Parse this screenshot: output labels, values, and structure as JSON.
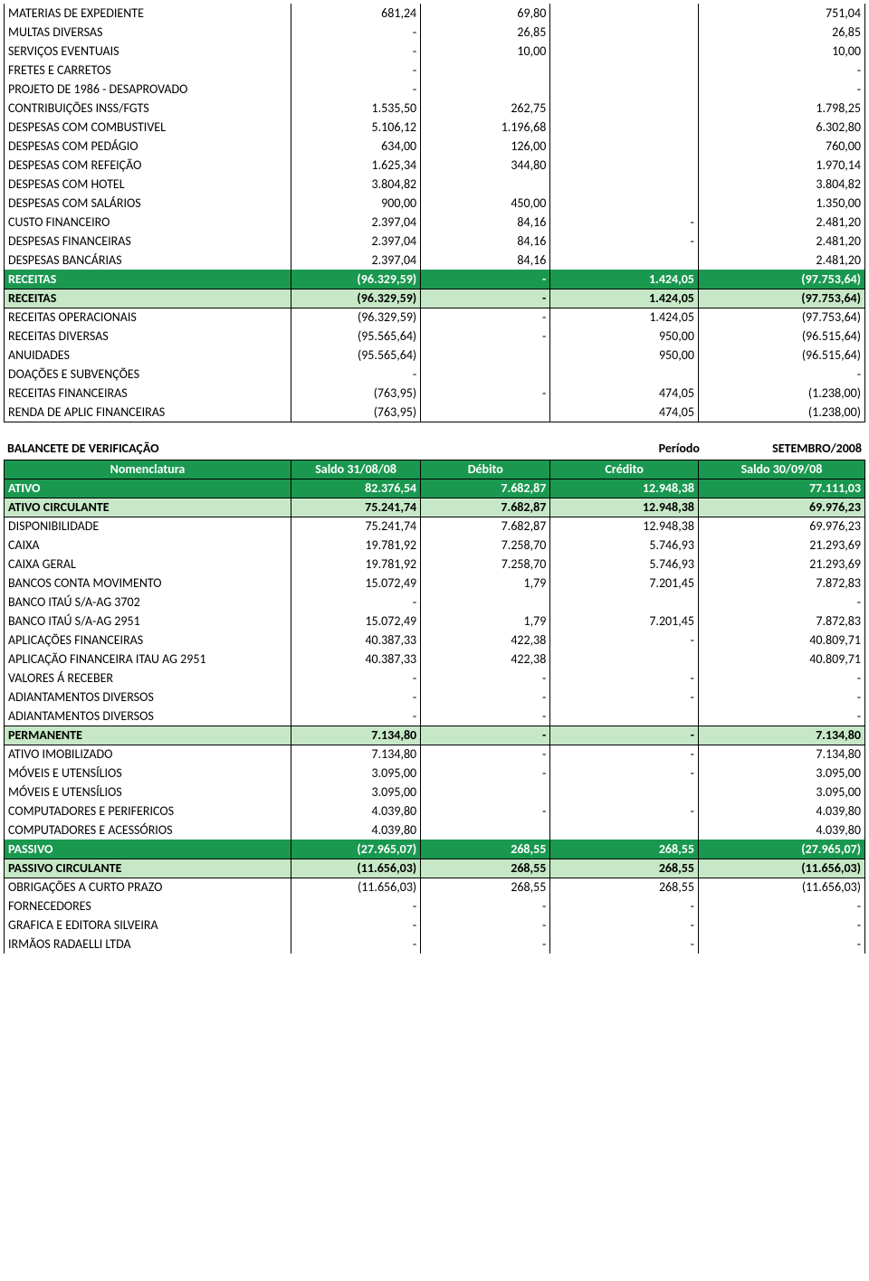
{
  "colors": {
    "dark_green": "#1a9850",
    "light_green": "#c6e8c6",
    "border": "#000000",
    "text": "#000000",
    "white": "#ffffff"
  },
  "section1": {
    "rows": [
      {
        "label": "MATERIAS DE EXPEDIENTE",
        "c1": "681,24",
        "c2": "69,80",
        "c3": "",
        "c4": "751,04",
        "style": "plain"
      },
      {
        "label": "MULTAS DIVERSAS",
        "c1": "-",
        "c2": "26,85",
        "c3": "",
        "c4": "26,85",
        "style": "plain"
      },
      {
        "label": "SERVIÇOS EVENTUAIS",
        "c1": "-",
        "c2": "10,00",
        "c3": "",
        "c4": "10,00",
        "style": "plain"
      },
      {
        "label": "FRETES E CARRETOS",
        "c1": "-",
        "c2": "",
        "c3": "",
        "c4": "-",
        "style": "plain"
      },
      {
        "label": "PROJETO DE 1986 - DESAPROVADO",
        "c1": "-",
        "c2": "",
        "c3": "",
        "c4": "-",
        "style": "plain"
      },
      {
        "label": "CONTRIBUIÇÕES INSS/FGTS",
        "c1": "1.535,50",
        "c2": "262,75",
        "c3": "",
        "c4": "1.798,25",
        "style": "plain"
      },
      {
        "label": "DESPESAS COM COMBUSTIVEL",
        "c1": "5.106,12",
        "c2": "1.196,68",
        "c3": "",
        "c4": "6.302,80",
        "style": "plain"
      },
      {
        "label": "DESPESAS COM PEDÁGIO",
        "c1": "634,00",
        "c2": "126,00",
        "c3": "",
        "c4": "760,00",
        "style": "plain"
      },
      {
        "label": "DESPESAS COM REFEIÇÃO",
        "c1": "1.625,34",
        "c2": "344,80",
        "c3": "",
        "c4": "1.970,14",
        "style": "plain"
      },
      {
        "label": "DESPESAS COM HOTEL",
        "c1": "3.804,82",
        "c2": "",
        "c3": "",
        "c4": "3.804,82",
        "style": "plain"
      },
      {
        "label": "DESPESAS COM SALÁRIOS",
        "c1": "900,00",
        "c2": "450,00",
        "c3": "",
        "c4": "1.350,00",
        "style": "plain"
      },
      {
        "label": "CUSTO FINANCEIRO",
        "c1": "2.397,04",
        "c2": "84,16",
        "c3": "-",
        "c4": "2.481,20",
        "style": "plain"
      },
      {
        "label": "DESPESAS FINANCEIRAS",
        "c1": "2.397,04",
        "c2": "84,16",
        "c3": "-",
        "c4": "2.481,20",
        "style": "plain"
      },
      {
        "label": "DESPESAS BANCÁRIAS",
        "c1": "2.397,04",
        "c2": "84,16",
        "c3": "",
        "c4": "2.481,20",
        "style": "plain"
      },
      {
        "label": "RECEITAS",
        "c1": "(96.329,59)",
        "c2": "-",
        "c3": "1.424,05",
        "c4": "(97.753,64)",
        "style": "dark"
      },
      {
        "label": "RECEITAS",
        "c1": "(96.329,59)",
        "c2": "-",
        "c3": "1.424,05",
        "c4": "(97.753,64)",
        "style": "light"
      },
      {
        "label": "RECEITAS OPERACIONAIS",
        "c1": "(96.329,59)",
        "c2": "-",
        "c3": "1.424,05",
        "c4": "(97.753,64)",
        "style": "plain"
      },
      {
        "label": "RECEITAS DIVERSAS",
        "c1": "(95.565,64)",
        "c2": "-",
        "c3": "950,00",
        "c4": "(96.515,64)",
        "style": "plain"
      },
      {
        "label": "ANUIDADES",
        "c1": "(95.565,64)",
        "c2": "",
        "c3": "950,00",
        "c4": "(96.515,64)",
        "style": "plain"
      },
      {
        "label": "DOAÇÕES E SUBVENÇÕES",
        "c1": "-",
        "c2": "",
        "c3": "",
        "c4": "-",
        "style": "plain"
      },
      {
        "label": "RECEITAS FINANCEIRAS",
        "c1": "(763,95)",
        "c2": "-",
        "c3": "474,05",
        "c4": "(1.238,00)",
        "style": "plain"
      },
      {
        "label": "RENDA DE APLIC FINANCEIRAS",
        "c1": "(763,95)",
        "c2": "",
        "c3": "474,05",
        "c4": "(1.238,00)",
        "style": "plain-bottom"
      }
    ]
  },
  "section2": {
    "title_left": "BALANCETE DE VERIFICAÇÃO",
    "title_period_label": "Período",
    "title_period_value": "SETEMBRO/2008",
    "headers": {
      "c0": "Nomenclatura",
      "c1": "Saldo 31/08/08",
      "c2": "Débito",
      "c3": "Crédito",
      "c4": "Saldo 30/09/08"
    },
    "rows": [
      {
        "label": "ATIVO",
        "c1": "82.376,54",
        "c2": "7.682,87",
        "c3": "12.948,38",
        "c4": "77.111,03",
        "style": "dark"
      },
      {
        "label": "ATIVO CIRCULANTE",
        "c1": "75.241,74",
        "c2": "7.682,87",
        "c3": "12.948,38",
        "c4": "69.976,23",
        "style": "light"
      },
      {
        "label": "DISPONIBILIDADE",
        "c1": "75.241,74",
        "c2": "7.682,87",
        "c3": "12.948,38",
        "c4": "69.976,23",
        "style": "plain"
      },
      {
        "label": "CAIXA",
        "c1": "19.781,92",
        "c2": "7.258,70",
        "c3": "5.746,93",
        "c4": "21.293,69",
        "style": "plain"
      },
      {
        "label": "CAIXA GERAL",
        "c1": "19.781,92",
        "c2": "7.258,70",
        "c3": "5.746,93",
        "c4": "21.293,69",
        "style": "plain"
      },
      {
        "label": "BANCOS CONTA MOVIMENTO",
        "c1": "15.072,49",
        "c2": "1,79",
        "c3": "7.201,45",
        "c4": "7.872,83",
        "style": "plain"
      },
      {
        "label": "BANCO ITAÚ S/A-AG 3702",
        "c1": "-",
        "c2": "",
        "c3": "",
        "c4": "-",
        "style": "plain"
      },
      {
        "label": "BANCO ITAÚ S/A-AG 2951",
        "c1": "15.072,49",
        "c2": "1,79",
        "c3": "7.201,45",
        "c4": "7.872,83",
        "style": "plain"
      },
      {
        "label": "APLICAÇÕES FINANCEIRAS",
        "c1": "40.387,33",
        "c2": "422,38",
        "c3": "-",
        "c4": "40.809,71",
        "style": "plain"
      },
      {
        "label": "APLICAÇÃO FINANCEIRA ITAU AG 2951",
        "c1": "40.387,33",
        "c2": "422,38",
        "c3": "",
        "c4": "40.809,71",
        "style": "plain"
      },
      {
        "label": "VALORES Á RECEBER",
        "c1": "-",
        "c2": "-",
        "c3": "-",
        "c4": "-",
        "style": "plain"
      },
      {
        "label": "ADIANTAMENTOS DIVERSOS",
        "c1": "-",
        "c2": "-",
        "c3": "-",
        "c4": "-",
        "style": "plain"
      },
      {
        "label": "ADIANTAMENTOS DIVERSOS",
        "c1": "-",
        "c2": "-",
        "c3": "",
        "c4": "-",
        "style": "plain"
      },
      {
        "label": "PERMANENTE",
        "c1": "7.134,80",
        "c2": "-",
        "c3": "-",
        "c4": "7.134,80",
        "style": "light"
      },
      {
        "label": "ATIVO IMOBILIZADO",
        "c1": "7.134,80",
        "c2": "-",
        "c3": "-",
        "c4": "7.134,80",
        "style": "plain"
      },
      {
        "label": "MÓVEIS E UTENSÍLIOS",
        "c1": "3.095,00",
        "c2": "-",
        "c3": "-",
        "c4": "3.095,00",
        "style": "plain"
      },
      {
        "label": "MÓVEIS E UTENSÍLIOS",
        "c1": "3.095,00",
        "c2": "",
        "c3": "",
        "c4": "3.095,00",
        "style": "plain"
      },
      {
        "label": "COMPUTADORES E PERIFERICOS",
        "c1": "4.039,80",
        "c2": "-",
        "c3": "-",
        "c4": "4.039,80",
        "style": "plain"
      },
      {
        "label": "COMPUTADORES E ACESSÓRIOS",
        "c1": "4.039,80",
        "c2": "",
        "c3": "",
        "c4": "4.039,80",
        "style": "plain"
      },
      {
        "label": "PASSIVO",
        "c1": "(27.965,07)",
        "c2": "268,55",
        "c3": "268,55",
        "c4": "(27.965,07)",
        "style": "dark"
      },
      {
        "label": "PASSIVO CIRCULANTE",
        "c1": "(11.656,03)",
        "c2": "268,55",
        "c3": "268,55",
        "c4": "(11.656,03)",
        "style": "light"
      },
      {
        "label": "OBRIGAÇÕES A CURTO PRAZO",
        "c1": "(11.656,03)",
        "c2": "268,55",
        "c3": "268,55",
        "c4": "(11.656,03)",
        "style": "plain"
      },
      {
        "label": "FORNECEDORES",
        "c1": "-",
        "c2": "-",
        "c3": "-",
        "c4": "-",
        "style": "plain"
      },
      {
        "label": "GRAFICA E EDITORA SILVEIRA",
        "c1": "-",
        "c2": "-",
        "c3": "-",
        "c4": "-",
        "style": "plain"
      },
      {
        "label": "IRMÃOS RADAELLI LTDA",
        "c1": "-",
        "c2": "-",
        "c3": "-",
        "c4": "-",
        "style": "plain"
      }
    ]
  }
}
